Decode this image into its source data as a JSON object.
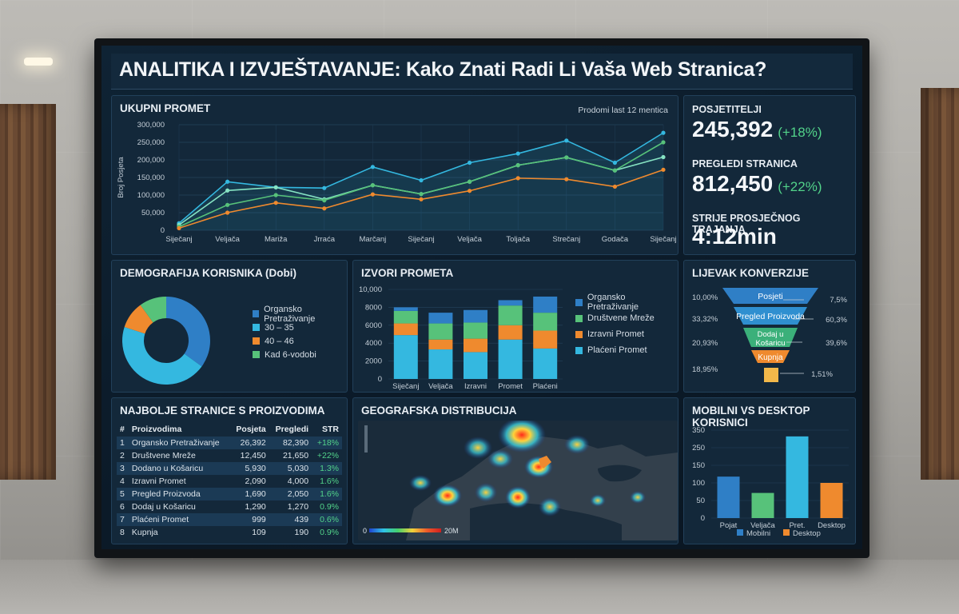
{
  "title": "ANALITIKA I IZVJEŠTAVANJE: Kako Znati Radi Li Vaša Web Stranica?",
  "traffic": {
    "title": "UKUPNI PROMET",
    "note": "Prodomi last 12 mentica",
    "ylabel": "Broj Posjeta",
    "y_ticks": [
      "300,000",
      "250,000",
      "200,000",
      "150,000",
      "100,000",
      "50,000",
      "0"
    ],
    "x_labels": [
      "Siječanj",
      "Veljača",
      "Mariža",
      "Jrraća",
      "Marčanj",
      "Siječanj",
      "Veljača",
      "Toljača",
      "Strečanj",
      "Godača",
      "Siječanj"
    ]
  },
  "kpis": [
    {
      "label": "POSJETITELJI",
      "value": "245,392",
      "delta": "(+18%)"
    },
    {
      "label": "PREGLEDI STRANICA",
      "value": "812,450",
      "delta": "(+22%)"
    },
    {
      "label": "STRIJE PROSJEČNOG TRAJANJA",
      "value": "4:12min",
      "delta": ""
    }
  ],
  "demographics": {
    "title": "DEMOGRAFIJA KORISNIKA (Dobi)",
    "legend": [
      "Organsko Pretraživanje",
      "30 – 35",
      "40 – 46",
      "Kad 6-vodobi"
    ]
  },
  "sources": {
    "title": "IZVORI PROMETA",
    "y_ticks": [
      "10,000",
      "8000",
      "6000",
      "4000",
      "2000",
      "0"
    ],
    "categories": [
      "Siječanj",
      "Veljača",
      "Izravni",
      "Promet",
      "Plaćeni"
    ],
    "legend": [
      "Organsko Pretraživanje",
      "Društvene Mreže",
      "Izravni Promet",
      "Plaćeni Promet"
    ]
  },
  "funnel": {
    "title": "LIJEVAK KONVERZIJE",
    "stages": [
      {
        "label": "Posjeti",
        "left": "10,00%",
        "right": "7,5%"
      },
      {
        "label": "Pregled Proizvoda",
        "left": "33,32%",
        "right": "60,3%"
      },
      {
        "label": "Dodaj u Košaricu",
        "left": "20,93%",
        "right": "39,6%"
      },
      {
        "label": "Kupnja",
        "left": "18,95%",
        "right": "1,51%"
      }
    ]
  },
  "top_pages": {
    "title": "NAJBOLJE STRANICE S PROIZVODIMA",
    "headers": [
      "#",
      "Proizvodima",
      "Posjeta",
      "Pregledi",
      "STR"
    ],
    "rows": [
      [
        "1",
        "Organsko Pretraživanje",
        "26,392",
        "82,390",
        "+18%"
      ],
      [
        "2",
        "Društvene Mreže",
        "12,450",
        "21,650",
        "+22%"
      ],
      [
        "3",
        "Dodano u Košaricu",
        "5,930",
        "5,030",
        "1.3%"
      ],
      [
        "4",
        "Izravni Promet",
        "2,090",
        "4,000",
        "1.6%"
      ],
      [
        "5",
        "Pregled Proizvoda",
        "1,690",
        "2,050",
        "1.6%"
      ],
      [
        "6",
        "Dodaj u Košaricu",
        "1,290",
        "1,270",
        "0.9%"
      ],
      [
        "7",
        "Plaćeni Promet",
        "999",
        "439",
        "0.6%"
      ],
      [
        "8",
        "Kupnja",
        "109",
        "190",
        "0.9%"
      ]
    ]
  },
  "geo": {
    "title": "GEOGRAFSKA DISTRIBUCIJA",
    "scale_min": "0",
    "scale_max": "20M"
  },
  "devices": {
    "title": "MOBILNI VS DESKTOP KORISNICI",
    "y_ticks": [
      "350",
      "250",
      "150",
      "100",
      "50",
      "0"
    ],
    "legend": [
      "Mobilni",
      "Desktop"
    ]
  },
  "colors": {
    "blue": "#2f7fc6",
    "cyan": "#34b8e0",
    "orange": "#ef8a2e",
    "green": "#57c27a"
  },
  "chart_data": [
    {
      "type": "line",
      "title": "UKUPNI PROMET",
      "ylabel": "Broj Posjeta",
      "ylim": [
        0,
        300000
      ],
      "x": [
        "Siječanj",
        "Veljača",
        "Mariža",
        "Jrraća",
        "Marčanj",
        "Siječanj",
        "Veljača",
        "Toljača",
        "Strečanj",
        "Godača",
        "Siječanj"
      ],
      "series": [
        {
          "values": [
            20000,
            138000,
            122000,
            120000,
            180000,
            142000,
            192000,
            218000,
            255000,
            192000,
            277000
          ]
        },
        {
          "values": [
            15000,
            113000,
            122000,
            88000,
            128000,
            103000,
            138000,
            185000,
            207000,
            170000,
            208000
          ]
        },
        {
          "values": [
            10000,
            72000,
            100000,
            85000,
            128000,
            103000,
            138000,
            185000,
            207000,
            170000,
            250000
          ]
        },
        {
          "values": [
            6000,
            50000,
            78000,
            62000,
            102000,
            88000,
            112000,
            148000,
            145000,
            124000,
            172000
          ]
        }
      ]
    },
    {
      "type": "pie",
      "title": "DEMOGRAFIJA KORISNIKA (Dobi)",
      "categories": [
        "Organsko Pretraživanje",
        "30 – 35",
        "40 – 46",
        "Kad 6-vodobi"
      ],
      "values": [
        35,
        45,
        10,
        10
      ]
    },
    {
      "type": "bar",
      "title": "IZVORI PROMETA",
      "ylim": [
        0,
        10000
      ],
      "categories": [
        "Siječanj",
        "Veljača",
        "Izravni",
        "Promet",
        "Plaćeni"
      ],
      "series": [
        {
          "name": "Plaćeni Promet",
          "values": [
            4900,
            3300,
            3000,
            4400,
            3400
          ]
        },
        {
          "name": "Izravni Promet",
          "values": [
            1300,
            1100,
            1500,
            1600,
            2000
          ]
        },
        {
          "name": "Društvene Mreže",
          "values": [
            1400,
            1800,
            1800,
            2200,
            2000
          ]
        },
        {
          "name": "Organsko Pretraživanje",
          "values": [
            400,
            1200,
            1400,
            600,
            1800
          ]
        }
      ]
    },
    {
      "type": "bar",
      "title": "MOBILNI VS DESKTOP KORISNICI",
      "ylim": [
        0,
        350
      ],
      "categories": [
        "Pojat",
        "Veljača",
        "Pret.",
        "Desktop"
      ],
      "values": [
        165,
        100,
        325,
        140
      ],
      "legend": [
        "Mobilni",
        "Desktop"
      ]
    }
  ]
}
